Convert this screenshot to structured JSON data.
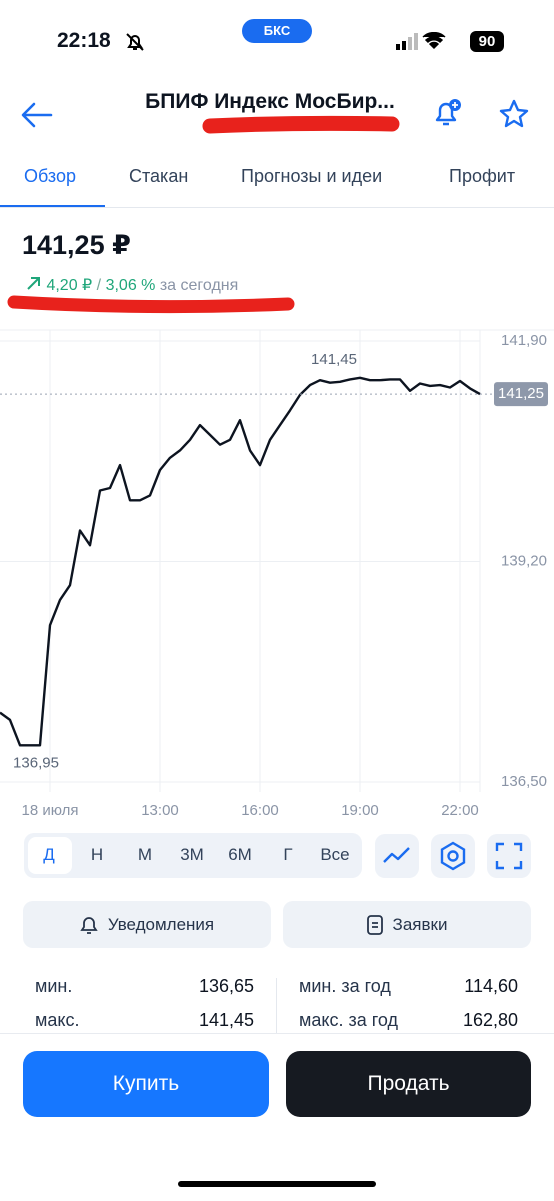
{
  "status_bar": {
    "time": "22:18",
    "carrier_badge": "БКС",
    "battery": "90"
  },
  "header": {
    "title": "БПИФ Индекс МосБир..."
  },
  "tabs": [
    "Обзор",
    "Стакан",
    "Прогнозы и идеи",
    "Профит"
  ],
  "price": {
    "value": "141,25 ₽",
    "change": "4,20 ₽",
    "separator": "/",
    "change_percent": "3,06 %",
    "period": "за сегодня"
  },
  "chart": {
    "type": "line",
    "color": "#0d1420",
    "categories": [
      null,
      null,
      null,
      null,
      null,
      "18 июля",
      null,
      null,
      null,
      null,
      null,
      null,
      null,
      null,
      null,
      null,
      "13:00",
      null,
      null,
      null,
      null,
      null,
      null,
      null,
      null,
      null,
      "16:00",
      null,
      null,
      null,
      null,
      null,
      null,
      null,
      null,
      null,
      "19:00",
      null,
      null,
      null,
      null,
      null,
      null,
      null,
      null,
      null,
      "22:00",
      null,
      null
    ],
    "values": [
      137.35,
      137.26,
      136.95,
      136.95,
      136.95,
      138.42,
      138.73,
      138.91,
      139.58,
      139.4,
      140.07,
      140.1,
      140.38,
      139.95,
      139.95,
      140.01,
      140.32,
      140.47,
      140.56,
      140.69,
      140.87,
      140.75,
      140.63,
      140.69,
      140.93,
      140.56,
      140.38,
      140.69,
      140.87,
      141.05,
      141.24,
      141.36,
      141.42,
      141.39,
      141.4,
      141.43,
      141.45,
      141.42,
      141.42,
      141.43,
      141.43,
      141.29,
      141.38,
      141.35,
      141.36,
      141.33,
      141.41,
      141.32,
      141.25
    ],
    "ylim": [
      136.5,
      141.9
    ],
    "yticks": [
      {
        "value": 141.9,
        "label": "141,90"
      },
      {
        "value": 139.2,
        "label": "139,20"
      },
      {
        "value": 136.5,
        "label": "136,50"
      }
    ],
    "max_label": "141,45",
    "min_label": "136,95",
    "last_label": "141,25"
  },
  "periods": [
    "Д",
    "Н",
    "М",
    "3М",
    "6М",
    "Г",
    "Все"
  ],
  "actions": [
    "Уведомления",
    "Заявки"
  ],
  "stats": [
    {
      "label": "мин.",
      "value": "136,65"
    },
    {
      "label": "макс.",
      "value": "141,45"
    },
    {
      "label": "мин. за год",
      "value": "114,60"
    },
    {
      "label": "макс. за год",
      "value": "162,80"
    }
  ],
  "buttons": {
    "buy": "Купить",
    "sell": "Продать"
  }
}
